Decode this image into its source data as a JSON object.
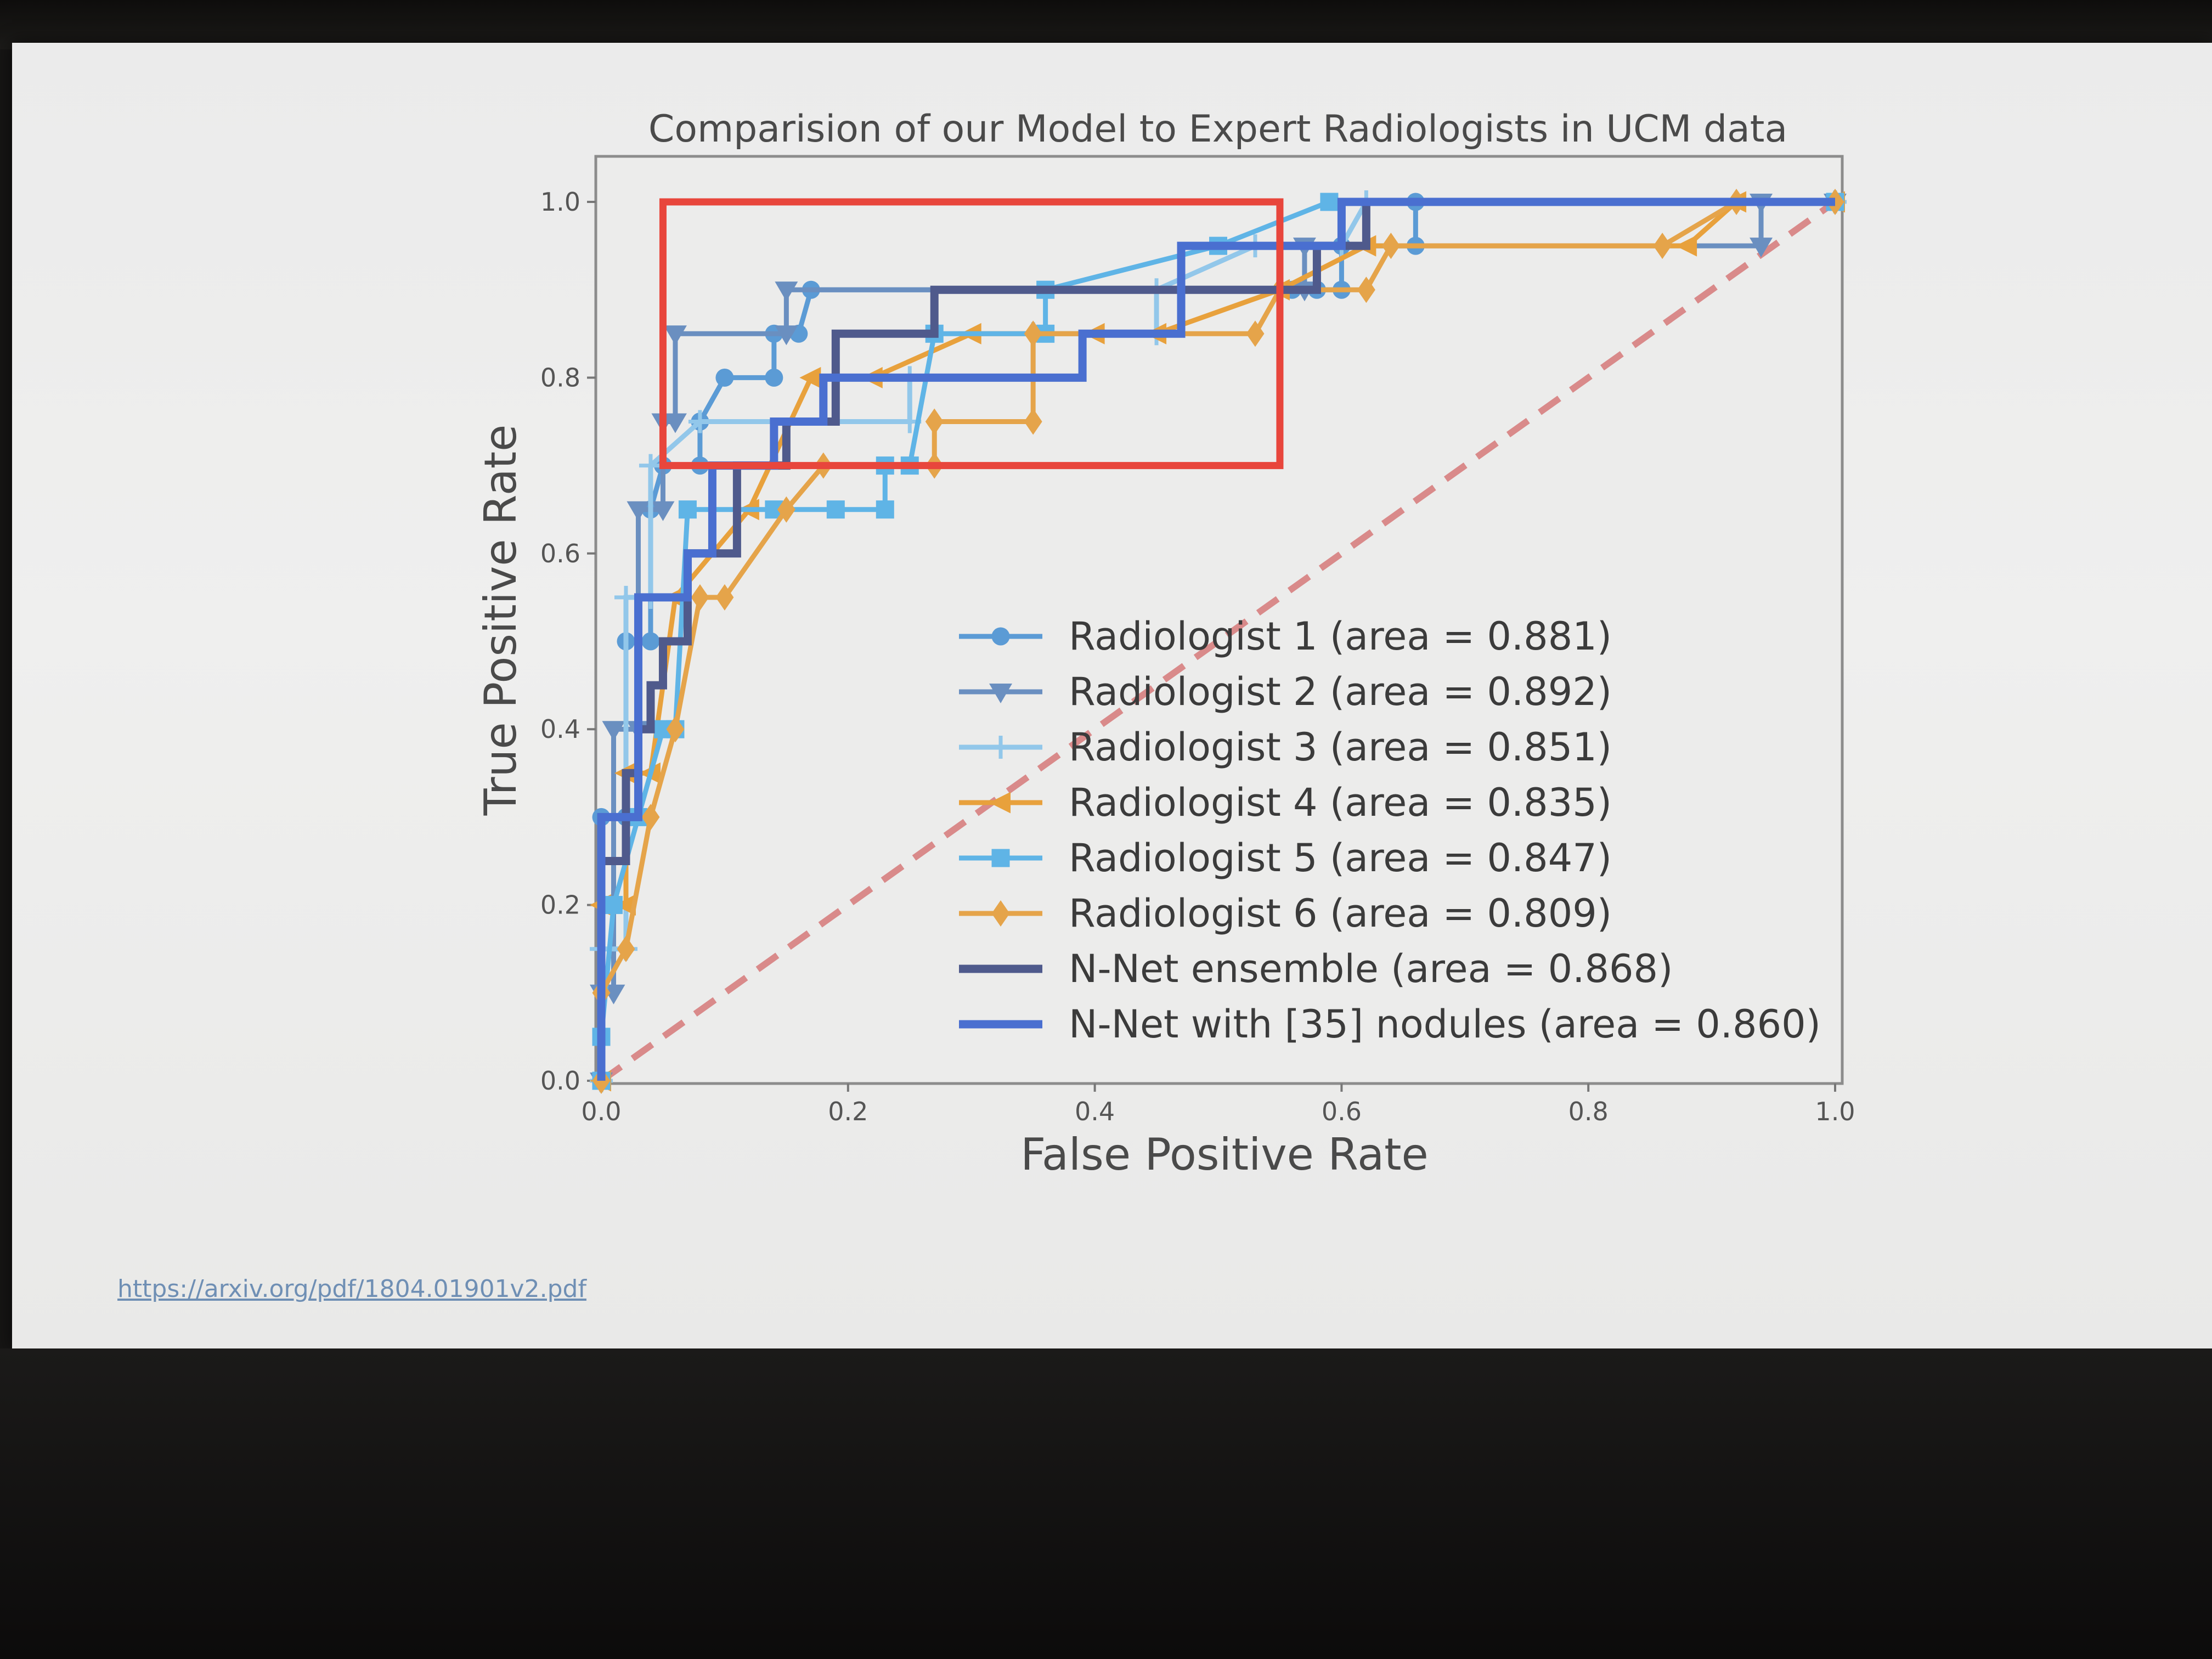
{
  "source_url": "https://arxiv.org/pdf/1804.01901v2.pdf",
  "chart_data": {
    "type": "line",
    "title": "Comparision of our Model to Expert Radiologists in UCM data",
    "xlabel": "False Positive Rate",
    "ylabel": "True Positive Rate",
    "xlim": [
      0.0,
      1.0
    ],
    "ylim": [
      0.0,
      1.0
    ],
    "xticks": [
      "0.0",
      "0.2",
      "0.4",
      "0.6",
      "0.8",
      "1.0"
    ],
    "yticks": [
      "0.0",
      "0.2",
      "0.4",
      "0.6",
      "0.8",
      "1.0"
    ],
    "legend_position": "lower-right",
    "highlight_box": {
      "x0": 0.05,
      "x1": 0.55,
      "y0": 0.7,
      "y1": 1.0,
      "color": "#e8463c"
    },
    "diagonal": {
      "from": [
        0,
        0
      ],
      "to": [
        1,
        1
      ],
      "color": "#d98a8a"
    },
    "series": [
      {
        "name": "Radiologist 1 (area = 0.881)",
        "color": "#5b9bd5",
        "marker": "circle",
        "points": [
          [
            0,
            0
          ],
          [
            0,
            0.3
          ],
          [
            0.02,
            0.3
          ],
          [
            0.02,
            0.5
          ],
          [
            0.04,
            0.5
          ],
          [
            0.04,
            0.65
          ],
          [
            0.05,
            0.7
          ],
          [
            0.08,
            0.7
          ],
          [
            0.08,
            0.75
          ],
          [
            0.1,
            0.8
          ],
          [
            0.14,
            0.8
          ],
          [
            0.14,
            0.85
          ],
          [
            0.16,
            0.85
          ],
          [
            0.17,
            0.9
          ],
          [
            0.56,
            0.9
          ],
          [
            0.58,
            0.9
          ],
          [
            0.6,
            0.9
          ],
          [
            0.6,
            0.95
          ],
          [
            0.66,
            0.95
          ],
          [
            0.66,
            1.0
          ],
          [
            1.0,
            1.0
          ]
        ]
      },
      {
        "name": "Radiologist 2 (area = 0.892)",
        "color": "#6a8fc0",
        "marker": "triangle",
        "points": [
          [
            0,
            0
          ],
          [
            0,
            0.1
          ],
          [
            0.01,
            0.1
          ],
          [
            0.01,
            0.4
          ],
          [
            0.03,
            0.4
          ],
          [
            0.03,
            0.65
          ],
          [
            0.05,
            0.65
          ],
          [
            0.05,
            0.75
          ],
          [
            0.06,
            0.75
          ],
          [
            0.06,
            0.85
          ],
          [
            0.15,
            0.85
          ],
          [
            0.15,
            0.9
          ],
          [
            0.57,
            0.9
          ],
          [
            0.57,
            0.95
          ],
          [
            0.94,
            0.95
          ],
          [
            0.94,
            1.0
          ],
          [
            1.0,
            1.0
          ]
        ]
      },
      {
        "name": "Radiologist 3 (area = 0.851)",
        "color": "#92c7ea",
        "marker": "plus",
        "points": [
          [
            0,
            0
          ],
          [
            0,
            0.15
          ],
          [
            0.02,
            0.15
          ],
          [
            0.02,
            0.55
          ],
          [
            0.04,
            0.55
          ],
          [
            0.04,
            0.7
          ],
          [
            0.08,
            0.75
          ],
          [
            0.25,
            0.75
          ],
          [
            0.25,
            0.8
          ],
          [
            0.35,
            0.8
          ],
          [
            0.35,
            0.85
          ],
          [
            0.45,
            0.85
          ],
          [
            0.45,
            0.9
          ],
          [
            0.53,
            0.95
          ],
          [
            0.6,
            0.95
          ],
          [
            0.62,
            1.0
          ],
          [
            1.0,
            1.0
          ]
        ]
      },
      {
        "name": "Radiologist 4 (area = 0.835)",
        "color": "#e8a13c",
        "marker": "triangle-left",
        "points": [
          [
            0,
            0
          ],
          [
            0,
            0.2
          ],
          [
            0.02,
            0.2
          ],
          [
            0.02,
            0.35
          ],
          [
            0.04,
            0.35
          ],
          [
            0.06,
            0.55
          ],
          [
            0.12,
            0.65
          ],
          [
            0.17,
            0.8
          ],
          [
            0.22,
            0.8
          ],
          [
            0.3,
            0.85
          ],
          [
            0.4,
            0.85
          ],
          [
            0.45,
            0.85
          ],
          [
            0.55,
            0.9
          ],
          [
            0.62,
            0.95
          ],
          [
            0.88,
            0.95
          ],
          [
            0.92,
            1.0
          ],
          [
            1.0,
            1.0
          ]
        ]
      },
      {
        "name": "Radiologist 5 (area = 0.847)",
        "color": "#5fb4e6",
        "marker": "square",
        "points": [
          [
            0,
            0
          ],
          [
            0,
            0.05
          ],
          [
            0.01,
            0.2
          ],
          [
            0.03,
            0.3
          ],
          [
            0.05,
            0.4
          ],
          [
            0.06,
            0.4
          ],
          [
            0.07,
            0.65
          ],
          [
            0.14,
            0.65
          ],
          [
            0.19,
            0.65
          ],
          [
            0.23,
            0.65
          ],
          [
            0.23,
            0.7
          ],
          [
            0.25,
            0.7
          ],
          [
            0.27,
            0.85
          ],
          [
            0.36,
            0.85
          ],
          [
            0.36,
            0.9
          ],
          [
            0.5,
            0.95
          ],
          [
            0.59,
            1.0
          ],
          [
            1.0,
            1.0
          ]
        ]
      },
      {
        "name": "Radiologist 6 (area = 0.809)",
        "color": "#e5a44a",
        "marker": "diamond",
        "points": [
          [
            0,
            0
          ],
          [
            0,
            0.1
          ],
          [
            0.02,
            0.15
          ],
          [
            0.04,
            0.3
          ],
          [
            0.06,
            0.4
          ],
          [
            0.08,
            0.55
          ],
          [
            0.1,
            0.55
          ],
          [
            0.15,
            0.65
          ],
          [
            0.18,
            0.7
          ],
          [
            0.27,
            0.7
          ],
          [
            0.27,
            0.75
          ],
          [
            0.35,
            0.75
          ],
          [
            0.35,
            0.85
          ],
          [
            0.53,
            0.85
          ],
          [
            0.55,
            0.9
          ],
          [
            0.62,
            0.9
          ],
          [
            0.64,
            0.95
          ],
          [
            0.86,
            0.95
          ],
          [
            0.92,
            1.0
          ],
          [
            1.0,
            1.0
          ]
        ]
      },
      {
        "name": "N-Net ensemble (area = 0.868)",
        "color": "#4f5a8c",
        "marker": "none",
        "points": [
          [
            0,
            0
          ],
          [
            0,
            0.25
          ],
          [
            0.02,
            0.25
          ],
          [
            0.02,
            0.35
          ],
          [
            0.03,
            0.35
          ],
          [
            0.03,
            0.4
          ],
          [
            0.04,
            0.4
          ],
          [
            0.04,
            0.45
          ],
          [
            0.05,
            0.45
          ],
          [
            0.05,
            0.5
          ],
          [
            0.07,
            0.5
          ],
          [
            0.07,
            0.6
          ],
          [
            0.11,
            0.6
          ],
          [
            0.11,
            0.7
          ],
          [
            0.15,
            0.7
          ],
          [
            0.15,
            0.75
          ],
          [
            0.19,
            0.75
          ],
          [
            0.19,
            0.85
          ],
          [
            0.27,
            0.85
          ],
          [
            0.27,
            0.9
          ],
          [
            0.47,
            0.9
          ],
          [
            0.58,
            0.9
          ],
          [
            0.58,
            0.95
          ],
          [
            0.62,
            0.95
          ],
          [
            0.62,
            1.0
          ],
          [
            1.0,
            1.0
          ]
        ]
      },
      {
        "name": "N-Net with [35] nodules (area = 0.860)",
        "color": "#4a6fd0",
        "marker": "none",
        "points": [
          [
            0,
            0
          ],
          [
            0,
            0.3
          ],
          [
            0.03,
            0.3
          ],
          [
            0.03,
            0.55
          ],
          [
            0.07,
            0.55
          ],
          [
            0.07,
            0.6
          ],
          [
            0.09,
            0.6
          ],
          [
            0.09,
            0.7
          ],
          [
            0.14,
            0.7
          ],
          [
            0.14,
            0.75
          ],
          [
            0.18,
            0.75
          ],
          [
            0.18,
            0.8
          ],
          [
            0.39,
            0.8
          ],
          [
            0.39,
            0.85
          ],
          [
            0.47,
            0.85
          ],
          [
            0.47,
            0.95
          ],
          [
            0.6,
            0.95
          ],
          [
            0.6,
            1.0
          ],
          [
            1.0,
            1.0
          ]
        ]
      }
    ]
  }
}
